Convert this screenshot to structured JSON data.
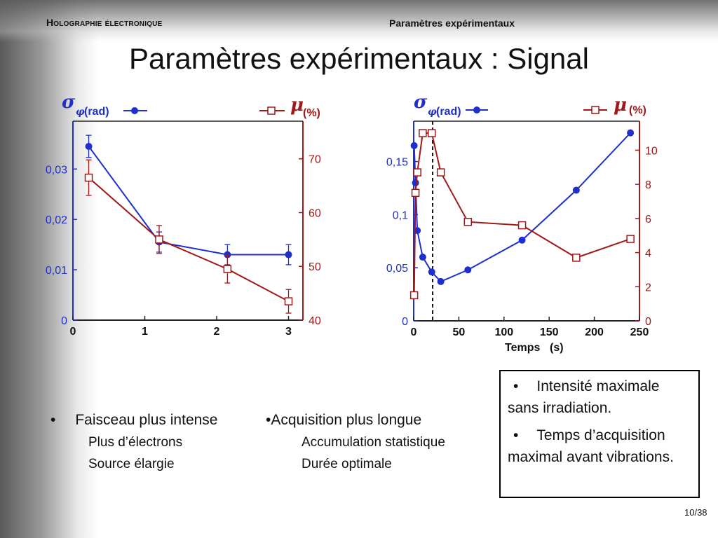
{
  "header": {
    "left": "Holographie électronique",
    "right": "Paramètres expérimentaux"
  },
  "title": "Paramètres expérimentaux : Signal",
  "chart_data": [
    {
      "type": "line",
      "left_axis_label": "σ",
      "left_axis_subscript": "φ",
      "left_axis_unit": "(rad)",
      "right_axis_label": "μ",
      "right_axis_unit": "(%)",
      "x_ticks": [
        "0",
        "1",
        "2",
        "3"
      ],
      "xlim": [
        0,
        3.2
      ],
      "ylim_left": [
        0,
        0.0395
      ],
      "ylim_right": [
        40,
        77
      ],
      "left_ticks": [
        "0",
        "0,01",
        "0,02",
        "0,03"
      ],
      "right_ticks": [
        "40",
        "50",
        "60",
        "70"
      ],
      "series": [
        {
          "axis": "left",
          "color": "#1f2fcc",
          "marker": "filled-circle",
          "x": [
            0.22,
            1.2,
            2.15,
            3.0
          ],
          "y": [
            0.0345,
            0.0155,
            0.013,
            0.013
          ],
          "err": [
            0.0022,
            0.002,
            0.002,
            0.002
          ]
        },
        {
          "axis": "right",
          "color": "#a01818",
          "marker": "open-square",
          "x": [
            0.22,
            1.2,
            2.15,
            3.0
          ],
          "y": [
            66.5,
            55,
            49.5,
            43.5
          ],
          "err": [
            3.3,
            2.6,
            2.6,
            2.2
          ]
        }
      ]
    },
    {
      "type": "line",
      "left_axis_label": "σ",
      "left_axis_subscript": "φ",
      "left_axis_unit": "(rad)",
      "right_axis_label": "μ",
      "right_axis_unit": "(%)",
      "xlabel": "Temps",
      "xlabel_unit": "(s)",
      "x_ticks": [
        "0",
        "50",
        "100",
        "150",
        "200",
        "250"
      ],
      "xlim": [
        0,
        250
      ],
      "ylim_left": [
        0,
        0.188
      ],
      "ylim_right": [
        0,
        11.7
      ],
      "left_ticks": [
        "0",
        "0,05",
        "0,1",
        "0,15"
      ],
      "right_ticks": [
        "0",
        "2",
        "4",
        "6",
        "8",
        "10"
      ],
      "vline_x": 21,
      "series": [
        {
          "axis": "left",
          "color": "#1f2fcc",
          "marker": "filled-circle",
          "x": [
            0.5,
            2,
            4,
            10,
            20,
            30,
            60,
            120,
            180,
            240
          ],
          "y": [
            0.165,
            0.13,
            0.085,
            0.06,
            0.046,
            0.037,
            0.048,
            0.076,
            0.123,
            0.177
          ]
        },
        {
          "axis": "right",
          "color": "#a01818",
          "marker": "open-square",
          "x": [
            0.5,
            2,
            4,
            10,
            20,
            30,
            60,
            120,
            180,
            240
          ],
          "y": [
            1.5,
            7.5,
            8.7,
            11,
            11,
            8.7,
            5.8,
            5.6,
            3.7,
            4.8
          ]
        }
      ]
    }
  ],
  "bullets": {
    "col1_marker": "•",
    "col1_title": "Faisceau plus intense",
    "col1_sub1": "Plus d’électrons",
    "col1_sub2": "Source élargie",
    "col2_title": "•Acquisition plus longue",
    "col2_sub1": "Accumulation statistique",
    "col2_sub2": "Durée optimale"
  },
  "box": {
    "marker": "•",
    "item1": "Intensité maximale sans irradiation.",
    "item2": "Temps d’acquisition maximal avant vibrations."
  },
  "pager": {
    "current": "10",
    "total": "/38"
  }
}
